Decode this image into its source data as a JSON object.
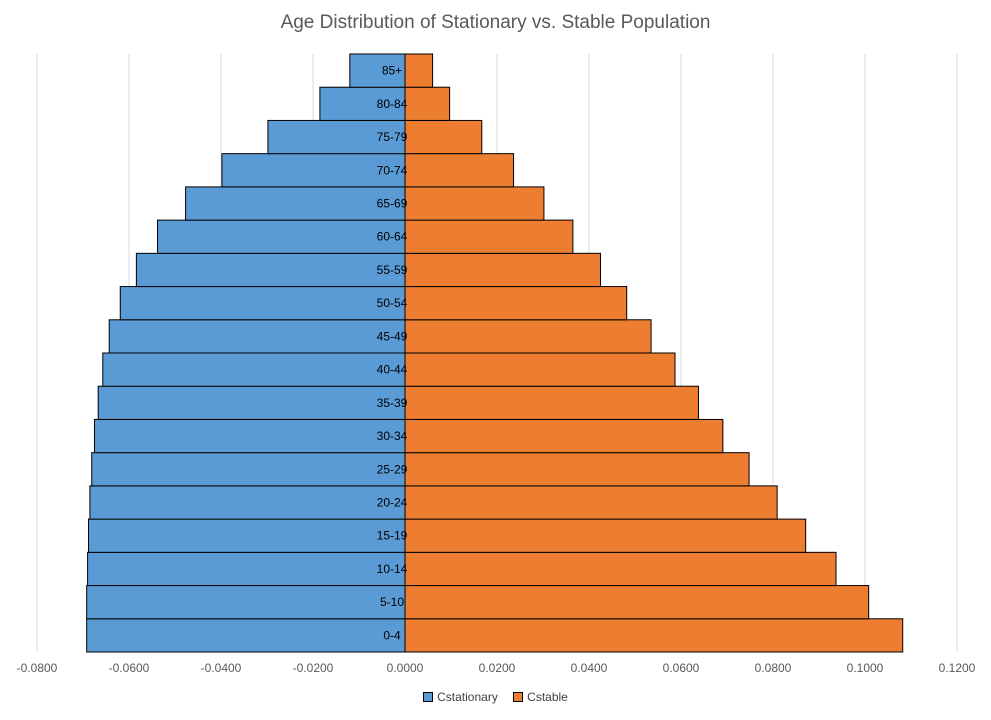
{
  "chart_data": {
    "type": "bar",
    "orientation": "horizontal",
    "title": "Age Distribution of Stationary vs. Stable Population",
    "xlabel": "",
    "ylabel": "",
    "xlim": [
      -0.08,
      0.12
    ],
    "x_ticks": [
      "-0.0800",
      "-0.0600",
      "-0.0400",
      "-0.0200",
      "0.0000",
      "0.0200",
      "0.0400",
      "0.0600",
      "0.0800",
      "0.1000",
      "0.1200"
    ],
    "x_tick_values": [
      -0.08,
      -0.06,
      -0.04,
      -0.02,
      0.0,
      0.02,
      0.04,
      0.06,
      0.08,
      0.1,
      0.12
    ],
    "grid": "vertical",
    "legend_position": "bottom",
    "categories": [
      "0-4",
      "5-10",
      "10-14",
      "15-19",
      "20-24",
      "25-29",
      "30-34",
      "35-39",
      "40-44",
      "45-49",
      "50-54",
      "55-59",
      "60-64",
      "65-69",
      "70-74",
      "75-79",
      "80-84",
      "85+"
    ],
    "series": [
      {
        "name": "Cstationary",
        "color": "#5B9BD5",
        "values": [
          -0.0692,
          -0.0692,
          -0.069,
          -0.0688,
          -0.0685,
          -0.0681,
          -0.0675,
          -0.0667,
          -0.0657,
          -0.0643,
          -0.0619,
          -0.0584,
          -0.0538,
          -0.0477,
          -0.0398,
          -0.0298,
          -0.0185,
          -0.012
        ]
      },
      {
        "name": "Cstable",
        "color": "#ED7D31",
        "values": [
          0.1082,
          0.1008,
          0.0937,
          0.0871,
          0.0809,
          0.0748,
          0.0691,
          0.0638,
          0.0587,
          0.0535,
          0.0482,
          0.0425,
          0.0365,
          0.0302,
          0.0236,
          0.0167,
          0.0097,
          0.006
        ]
      }
    ]
  }
}
